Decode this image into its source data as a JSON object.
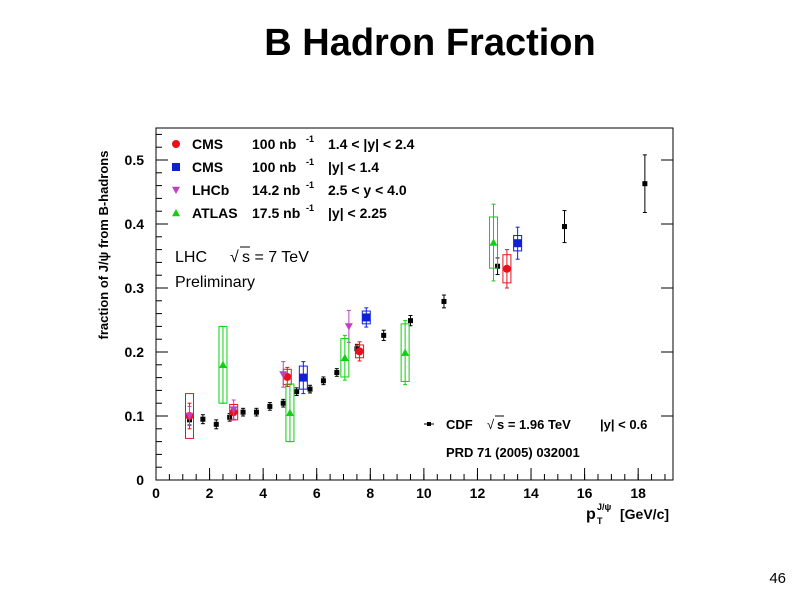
{
  "slide": {
    "title": "B Hadron Fraction",
    "page_number": "46"
  },
  "chart_data": {
    "type": "scatter",
    "xlabel": "[GeV/c]",
    "xlabel_main": "p",
    "xlabel_sup": "J/ψ",
    "xlabel_sub": "T",
    "ylabel": "fraction of J/ψ from B-hadrons",
    "xlim": [
      0,
      19.3
    ],
    "ylim": [
      0,
      0.55
    ],
    "x_ticks": [
      0,
      2,
      4,
      6,
      8,
      10,
      12,
      14,
      16,
      18
    ],
    "y_ticks": [
      0,
      0.1,
      0.2,
      0.3,
      0.4,
      0.5
    ],
    "y_tick_labels": [
      "0",
      "0.1",
      "0.2",
      "0.3",
      "0.4",
      "0.5"
    ],
    "annotation": {
      "lhc": "LHC",
      "energy": "s = 7 TeV",
      "prelim": "Preliminary",
      "sqrt": "√"
    },
    "cdf_legend": {
      "label": "CDF",
      "energy": "s = 1.96 TeV",
      "range": "|y| < 0.6",
      "sqrt": "√",
      "reference": "PRD 71 (2005) 032001"
    },
    "legend": [
      {
        "name": "CMS",
        "lumi": "100 nb",
        "lumi_exp": "-1",
        "range": "1.4 < |y| < 2.4",
        "color": "#e8101a",
        "marker": "circle"
      },
      {
        "name": "CMS",
        "lumi": "100 nb",
        "lumi_exp": "-1",
        "range": "|y| < 1.4",
        "color": "#1020d8",
        "marker": "square"
      },
      {
        "name": "LHCb",
        "lumi": "14.2 nb",
        "lumi_exp": "-1",
        "range": "2.5 < y < 4.0",
        "color": "#c040c0",
        "marker": "triangle-down"
      },
      {
        "name": "ATLAS",
        "lumi": "17.5 nb",
        "lumi_exp": "-1",
        "range": "|y| < 2.25",
        "color": "#10d010",
        "marker": "triangle-up"
      }
    ],
    "series": [
      {
        "name": "CDF",
        "color": "#000000",
        "marker": "square-small",
        "points": [
          {
            "x": 1.25,
            "y": 0.094,
            "err": 0.008
          },
          {
            "x": 1.75,
            "y": 0.095,
            "err": 0.007
          },
          {
            "x": 2.25,
            "y": 0.087,
            "err": 0.007
          },
          {
            "x": 2.75,
            "y": 0.098,
            "err": 0.006
          },
          {
            "x": 3.25,
            "y": 0.106,
            "err": 0.006
          },
          {
            "x": 3.75,
            "y": 0.106,
            "err": 0.006
          },
          {
            "x": 4.25,
            "y": 0.115,
            "err": 0.006
          },
          {
            "x": 4.75,
            "y": 0.12,
            "err": 0.006
          },
          {
            "x": 5.25,
            "y": 0.138,
            "err": 0.006
          },
          {
            "x": 5.75,
            "y": 0.142,
            "err": 0.006
          },
          {
            "x": 6.25,
            "y": 0.155,
            "err": 0.006
          },
          {
            "x": 6.75,
            "y": 0.168,
            "err": 0.006
          },
          {
            "x": 7.5,
            "y": 0.205,
            "err": 0.007
          },
          {
            "x": 8.5,
            "y": 0.226,
            "err": 0.008
          },
          {
            "x": 9.5,
            "y": 0.249,
            "err": 0.008
          },
          {
            "x": 10.75,
            "y": 0.279,
            "err": 0.01
          },
          {
            "x": 12.75,
            "y": 0.334,
            "err": 0.013
          },
          {
            "x": 15.25,
            "y": 0.396,
            "err": 0.025
          },
          {
            "x": 18.25,
            "y": 0.463,
            "err": 0.045
          }
        ]
      },
      {
        "name": "CMS 1.4 < |y| < 2.4",
        "color": "#e8101a",
        "marker": "circle",
        "points": [
          {
            "x": 1.25,
            "y": 0.1,
            "err": 0.02,
            "box": 0.035
          },
          {
            "x": 2.9,
            "y": 0.106,
            "err": 0.012,
            "box": 0.012
          },
          {
            "x": 4.9,
            "y": 0.161,
            "err": 0.015,
            "box": 0.012
          },
          {
            "x": 7.6,
            "y": 0.201,
            "err": 0.015,
            "box": 0.01
          },
          {
            "x": 13.1,
            "y": 0.33,
            "err": 0.03,
            "box": 0.022
          }
        ]
      },
      {
        "name": "CMS |y| < 1.4",
        "color": "#1020d8",
        "marker": "square",
        "points": [
          {
            "x": 5.5,
            "y": 0.16,
            "err": 0.025,
            "box": 0.018
          },
          {
            "x": 7.85,
            "y": 0.254,
            "err": 0.015,
            "box": 0.01
          },
          {
            "x": 13.5,
            "y": 0.37,
            "err": 0.025,
            "box": 0.012
          }
        ]
      },
      {
        "name": "LHCb",
        "color": "#c040c0",
        "marker": "triangle-down",
        "points": [
          {
            "x": 1.25,
            "y": 0.1,
            "err": 0.015
          },
          {
            "x": 2.9,
            "y": 0.11,
            "err": 0.015
          },
          {
            "x": 4.75,
            "y": 0.165,
            "err": 0.02
          },
          {
            "x": 7.2,
            "y": 0.24,
            "err": 0.025
          }
        ]
      },
      {
        "name": "ATLAS",
        "color": "#10d010",
        "marker": "triangle-up",
        "points": [
          {
            "x": 2.5,
            "y": 0.18,
            "err": 0.06,
            "box": 0.06
          },
          {
            "x": 5.0,
            "y": 0.105,
            "err": 0.045,
            "box": 0.045
          },
          {
            "x": 7.05,
            "y": 0.191,
            "err": 0.035,
            "box": 0.03
          },
          {
            "x": 9.3,
            "y": 0.199,
            "err": 0.05,
            "box": 0.045
          },
          {
            "x": 12.6,
            "y": 0.371,
            "err": 0.06,
            "box": 0.04
          }
        ]
      }
    ]
  }
}
